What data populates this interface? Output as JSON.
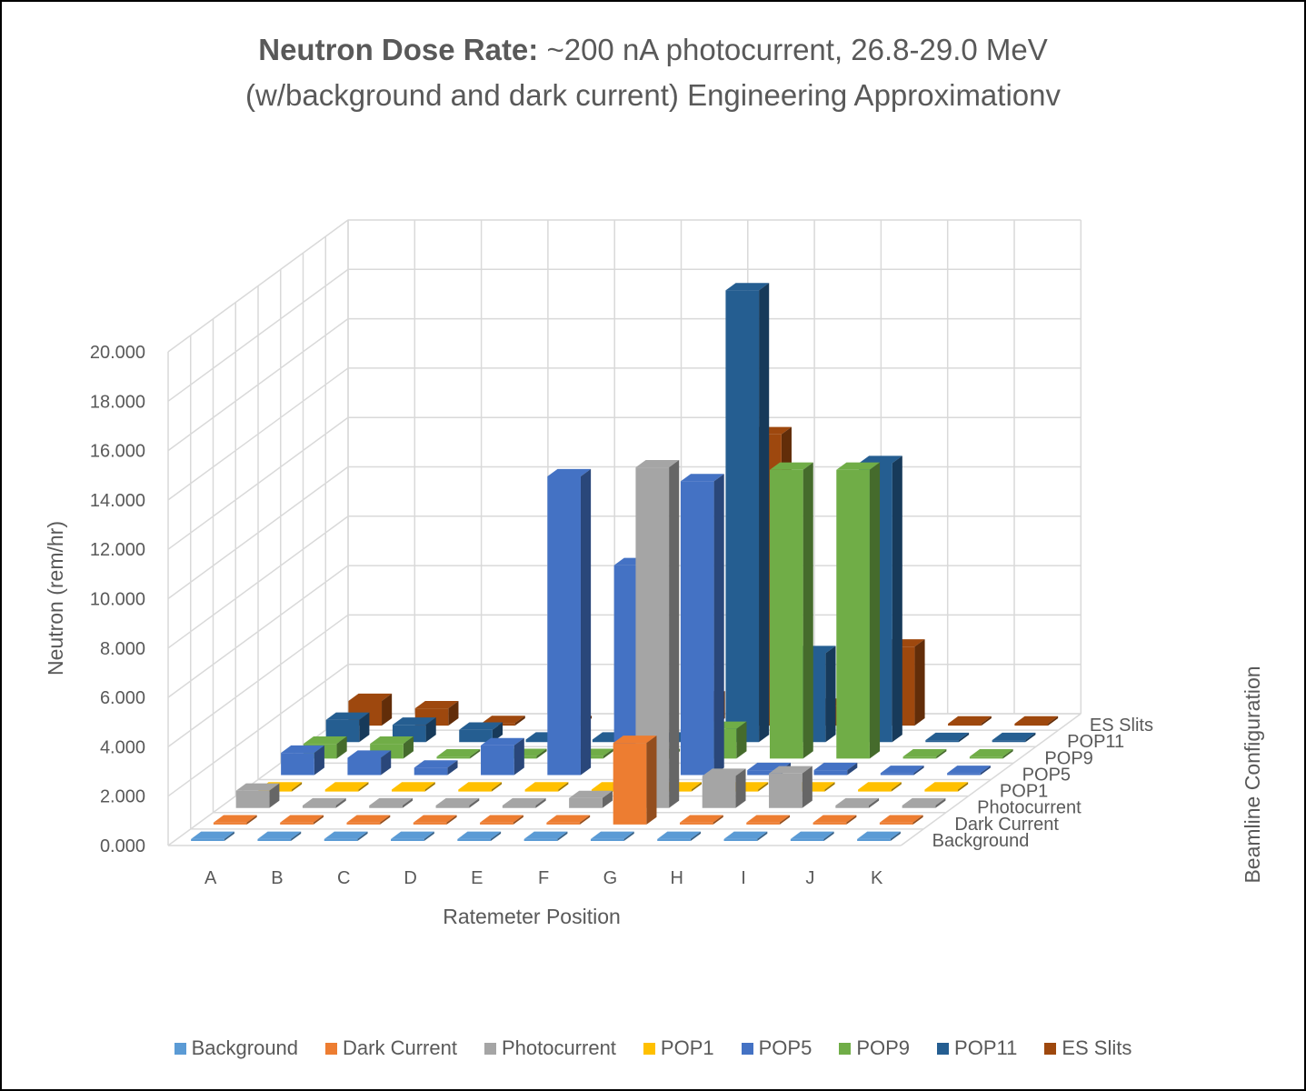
{
  "title": {
    "bold": "Neutron Dose Rate:",
    "line1": " ~200 nA photocurrent, 26.8-29.0 MeV",
    "line2": "(w/background and dark current) Engineering Approximationv"
  },
  "chart_data": {
    "type": "bar",
    "variant": "3d-column",
    "categories": [
      "A",
      "B",
      "C",
      "D",
      "E",
      "F",
      "G",
      "H",
      "I",
      "J",
      "K"
    ],
    "xlabel": "Ratemeter Position",
    "ylabel": "Neutron (rem/hr)",
    "zlabel": "Beamline Configuration",
    "ylim": [
      0,
      20
    ],
    "yticks": [
      "0.000",
      "2.000",
      "4.000",
      "6.000",
      "8.000",
      "10.000",
      "12.000",
      "14.000",
      "16.000",
      "18.000",
      "20.000"
    ],
    "grid": true,
    "legend_position": "bottom",
    "series": [
      {
        "name": "Background",
        "color": "#5B9BD5",
        "values": [
          0,
          0,
          0,
          0,
          0,
          0,
          0,
          0,
          0,
          0,
          0
        ]
      },
      {
        "name": "Dark Current",
        "color": "#ED7D31",
        "values": [
          0,
          0,
          0,
          0,
          0,
          0,
          3.3,
          0,
          0,
          0,
          0
        ]
      },
      {
        "name": "Photocurrent",
        "color": "#A5A5A5",
        "values": [
          0.7,
          0.1,
          0.1,
          0.1,
          0.1,
          0.4,
          13.8,
          1.3,
          1.4,
          0.1,
          0.1
        ]
      },
      {
        "name": "POP1",
        "color": "#FFC000",
        "values": [
          0,
          0,
          0,
          0,
          0,
          0,
          0,
          0,
          0,
          0,
          0
        ]
      },
      {
        "name": "POP5",
        "color": "#4472C4",
        "values": [
          0.9,
          0.7,
          0.3,
          1.2,
          12.1,
          8.5,
          11.9,
          0.2,
          0.2,
          0,
          0
        ]
      },
      {
        "name": "POP9",
        "color": "#70AD47",
        "values": [
          0.6,
          0.6,
          0,
          0.1,
          0.1,
          0.1,
          1.2,
          11.7,
          11.7,
          0,
          0
        ]
      },
      {
        "name": "POP11",
        "color": "#255E91",
        "values": [
          0.9,
          0.7,
          0.5,
          0.1,
          0.1,
          0.1,
          18.3,
          3.6,
          11.3,
          0,
          0
        ]
      },
      {
        "name": "ES Slits",
        "color": "#9E480E",
        "values": [
          1.0,
          0.7,
          0.1,
          0.1,
          0.1,
          1.1,
          11.8,
          0.8,
          3.2,
          0,
          0
        ]
      }
    ]
  },
  "depth_labels": [
    "Background",
    "Dark Current",
    "Photocurrent",
    "POP1",
    "POP5",
    "POP9",
    "POP11",
    "ES Slits"
  ],
  "legend": [
    {
      "label": "Background",
      "color": "#5B9BD5"
    },
    {
      "label": "Dark Current",
      "color": "#ED7D31"
    },
    {
      "label": "Photocurrent",
      "color": "#A5A5A5"
    },
    {
      "label": "POP1",
      "color": "#FFC000"
    },
    {
      "label": "POP5",
      "color": "#4472C4"
    },
    {
      "label": "POP9",
      "color": "#70AD47"
    },
    {
      "label": "POP11",
      "color": "#255E91"
    },
    {
      "label": "ES Slits",
      "color": "#9E480E"
    }
  ]
}
